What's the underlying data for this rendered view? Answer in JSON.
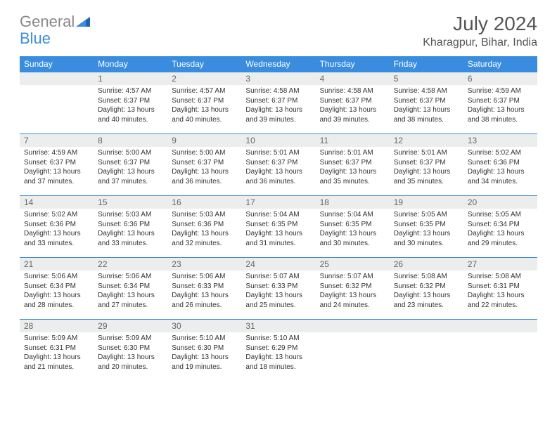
{
  "logo": {
    "gray": "General",
    "blue": "Blue"
  },
  "title": "July 2024",
  "location": "Kharagpur, Bihar, India",
  "colors": {
    "header_bg": "#3a8dde",
    "header_text": "#ffffff",
    "daynum_bg": "#eceded",
    "cell_border": "#3a8dde",
    "logo_gray": "#888888",
    "logo_blue": "#3a8dde"
  },
  "weekdays": [
    "Sunday",
    "Monday",
    "Tuesday",
    "Wednesday",
    "Thursday",
    "Friday",
    "Saturday"
  ],
  "weeks": [
    [
      {
        "n": "",
        "t": ""
      },
      {
        "n": "1",
        "t": "Sunrise: 4:57 AM\nSunset: 6:37 PM\nDaylight: 13 hours and 40 minutes."
      },
      {
        "n": "2",
        "t": "Sunrise: 4:57 AM\nSunset: 6:37 PM\nDaylight: 13 hours and 40 minutes."
      },
      {
        "n": "3",
        "t": "Sunrise: 4:58 AM\nSunset: 6:37 PM\nDaylight: 13 hours and 39 minutes."
      },
      {
        "n": "4",
        "t": "Sunrise: 4:58 AM\nSunset: 6:37 PM\nDaylight: 13 hours and 39 minutes."
      },
      {
        "n": "5",
        "t": "Sunrise: 4:58 AM\nSunset: 6:37 PM\nDaylight: 13 hours and 38 minutes."
      },
      {
        "n": "6",
        "t": "Sunrise: 4:59 AM\nSunset: 6:37 PM\nDaylight: 13 hours and 38 minutes."
      }
    ],
    [
      {
        "n": "7",
        "t": "Sunrise: 4:59 AM\nSunset: 6:37 PM\nDaylight: 13 hours and 37 minutes."
      },
      {
        "n": "8",
        "t": "Sunrise: 5:00 AM\nSunset: 6:37 PM\nDaylight: 13 hours and 37 minutes."
      },
      {
        "n": "9",
        "t": "Sunrise: 5:00 AM\nSunset: 6:37 PM\nDaylight: 13 hours and 36 minutes."
      },
      {
        "n": "10",
        "t": "Sunrise: 5:01 AM\nSunset: 6:37 PM\nDaylight: 13 hours and 36 minutes."
      },
      {
        "n": "11",
        "t": "Sunrise: 5:01 AM\nSunset: 6:37 PM\nDaylight: 13 hours and 35 minutes."
      },
      {
        "n": "12",
        "t": "Sunrise: 5:01 AM\nSunset: 6:37 PM\nDaylight: 13 hours and 35 minutes."
      },
      {
        "n": "13",
        "t": "Sunrise: 5:02 AM\nSunset: 6:36 PM\nDaylight: 13 hours and 34 minutes."
      }
    ],
    [
      {
        "n": "14",
        "t": "Sunrise: 5:02 AM\nSunset: 6:36 PM\nDaylight: 13 hours and 33 minutes."
      },
      {
        "n": "15",
        "t": "Sunrise: 5:03 AM\nSunset: 6:36 PM\nDaylight: 13 hours and 33 minutes."
      },
      {
        "n": "16",
        "t": "Sunrise: 5:03 AM\nSunset: 6:36 PM\nDaylight: 13 hours and 32 minutes."
      },
      {
        "n": "17",
        "t": "Sunrise: 5:04 AM\nSunset: 6:35 PM\nDaylight: 13 hours and 31 minutes."
      },
      {
        "n": "18",
        "t": "Sunrise: 5:04 AM\nSunset: 6:35 PM\nDaylight: 13 hours and 30 minutes."
      },
      {
        "n": "19",
        "t": "Sunrise: 5:05 AM\nSunset: 6:35 PM\nDaylight: 13 hours and 30 minutes."
      },
      {
        "n": "20",
        "t": "Sunrise: 5:05 AM\nSunset: 6:34 PM\nDaylight: 13 hours and 29 minutes."
      }
    ],
    [
      {
        "n": "21",
        "t": "Sunrise: 5:06 AM\nSunset: 6:34 PM\nDaylight: 13 hours and 28 minutes."
      },
      {
        "n": "22",
        "t": "Sunrise: 5:06 AM\nSunset: 6:34 PM\nDaylight: 13 hours and 27 minutes."
      },
      {
        "n": "23",
        "t": "Sunrise: 5:06 AM\nSunset: 6:33 PM\nDaylight: 13 hours and 26 minutes."
      },
      {
        "n": "24",
        "t": "Sunrise: 5:07 AM\nSunset: 6:33 PM\nDaylight: 13 hours and 25 minutes."
      },
      {
        "n": "25",
        "t": "Sunrise: 5:07 AM\nSunset: 6:32 PM\nDaylight: 13 hours and 24 minutes."
      },
      {
        "n": "26",
        "t": "Sunrise: 5:08 AM\nSunset: 6:32 PM\nDaylight: 13 hours and 23 minutes."
      },
      {
        "n": "27",
        "t": "Sunrise: 5:08 AM\nSunset: 6:31 PM\nDaylight: 13 hours and 22 minutes."
      }
    ],
    [
      {
        "n": "28",
        "t": "Sunrise: 5:09 AM\nSunset: 6:31 PM\nDaylight: 13 hours and 21 minutes."
      },
      {
        "n": "29",
        "t": "Sunrise: 5:09 AM\nSunset: 6:30 PM\nDaylight: 13 hours and 20 minutes."
      },
      {
        "n": "30",
        "t": "Sunrise: 5:10 AM\nSunset: 6:30 PM\nDaylight: 13 hours and 19 minutes."
      },
      {
        "n": "31",
        "t": "Sunrise: 5:10 AM\nSunset: 6:29 PM\nDaylight: 13 hours and 18 minutes."
      },
      {
        "n": "",
        "t": ""
      },
      {
        "n": "",
        "t": ""
      },
      {
        "n": "",
        "t": ""
      }
    ]
  ]
}
